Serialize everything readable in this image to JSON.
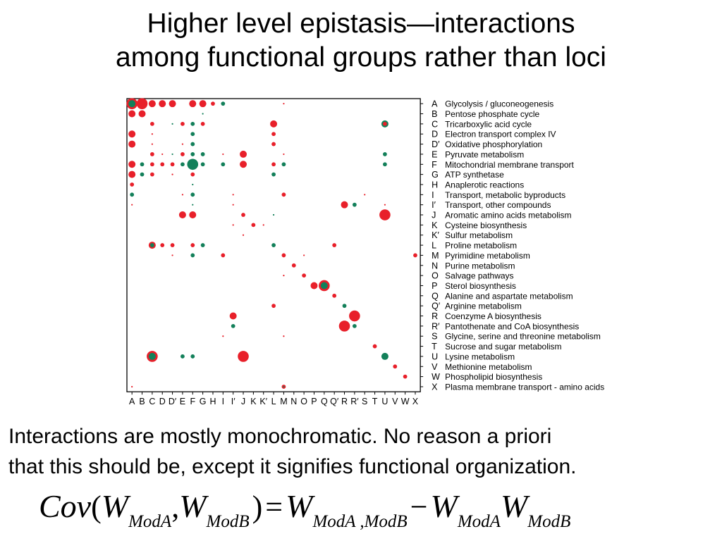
{
  "title": {
    "line1": "Higher level epistasis—interactions",
    "line2": "among functional groups rather than loci"
  },
  "matrix": {
    "colors": {
      "red": "#e8202a",
      "green": "#13805a",
      "grid": "#000000"
    },
    "x_labels": [
      "A",
      "B",
      "C",
      "D",
      "D′",
      "E",
      "F",
      "G",
      "H",
      "I",
      "I′",
      "J",
      "K",
      "K′",
      "L",
      "M",
      "N",
      "O",
      "P",
      "Q",
      "Q′",
      "R",
      "R′",
      "S",
      "T",
      "U",
      "V",
      "W",
      "X"
    ],
    "rows": [
      {
        "code": "A",
        "name": "Glycolysis / gluconeogenesis"
      },
      {
        "code": "B",
        "name": "Pentose phosphate cycle"
      },
      {
        "code": "C",
        "name": "Tricarboxylic acid cycle"
      },
      {
        "code": "D",
        "name": "Electron transport complex IV"
      },
      {
        "code": "D′",
        "name": "Oxidative phosphorylation"
      },
      {
        "code": "E",
        "name": "Pyruvate metabolism"
      },
      {
        "code": "F",
        "name": "Mitochondrial membrane transport"
      },
      {
        "code": "G",
        "name": "ATP synthetase"
      },
      {
        "code": "H",
        "name": "Anaplerotic reactions"
      },
      {
        "code": "I",
        "name": "Transport, metabolic byproducts"
      },
      {
        "code": "I′",
        "name": "Transport, other compounds"
      },
      {
        "code": "J",
        "name": "Aromatic amino acids metabolism"
      },
      {
        "code": "K",
        "name": "Cysteine biosynthesis"
      },
      {
        "code": "K′",
        "name": "Sulfur metabolism"
      },
      {
        "code": "L",
        "name": "Proline metabolism"
      },
      {
        "code": "M",
        "name": "Pyrimidine  metabolism"
      },
      {
        "code": "N",
        "name": "Purine metabolism"
      },
      {
        "code": "O",
        "name": "Salvage pathways"
      },
      {
        "code": "P",
        "name": "Sterol biosynthesis"
      },
      {
        "code": "Q",
        "name": "Alanine and aspartate metabolism"
      },
      {
        "code": "Q′",
        "name": "Arginine metabolism"
      },
      {
        "code": "R",
        "name": "Coenzyme A biosynthesis"
      },
      {
        "code": "R′",
        "name": "Pantothenate and CoA biosynthesis"
      },
      {
        "code": "S",
        "name": "Glycine, serine and threonine metabolism"
      },
      {
        "code": "T",
        "name": "Sucrose and sugar metabolism"
      },
      {
        "code": "U",
        "name": "Lysine metabolism"
      },
      {
        "code": "V",
        "name": "Methionine metabolism"
      },
      {
        "code": "W",
        "name": "Phospholipid biosynthesis"
      },
      {
        "code": "X",
        "name": "Plasma membrane transport - amino acids"
      }
    ],
    "dots": [
      [
        0,
        0,
        "r",
        3
      ],
      [
        0,
        0,
        "g",
        2
      ],
      [
        1,
        0,
        "r",
        3
      ],
      [
        2,
        0,
        "r",
        2
      ],
      [
        3,
        0,
        "r",
        2
      ],
      [
        4,
        0,
        "r",
        2
      ],
      [
        6,
        0,
        "r",
        2
      ],
      [
        7,
        0,
        "r",
        2
      ],
      [
        8,
        0,
        "r",
        1
      ],
      [
        9,
        0,
        "g",
        1
      ],
      [
        15,
        0,
        "r",
        0
      ],
      [
        0,
        1,
        "r",
        2
      ],
      [
        1,
        1,
        "r",
        2
      ],
      [
        7,
        1,
        "g",
        0
      ],
      [
        2,
        2,
        "r",
        1
      ],
      [
        4,
        2,
        "g",
        0
      ],
      [
        5,
        2,
        "r",
        1
      ],
      [
        6,
        2,
        "g",
        1
      ],
      [
        7,
        2,
        "r",
        1
      ],
      [
        14,
        2,
        "r",
        2
      ],
      [
        25,
        2,
        "g",
        2
      ],
      [
        25,
        2,
        "r",
        1
      ],
      [
        0,
        3,
        "r",
        2
      ],
      [
        2,
        3,
        "r",
        0
      ],
      [
        6,
        3,
        "g",
        1
      ],
      [
        14,
        3,
        "r",
        1
      ],
      [
        0,
        4,
        "r",
        2
      ],
      [
        2,
        4,
        "r",
        0
      ],
      [
        5,
        4,
        "r",
        0
      ],
      [
        6,
        4,
        "g",
        1
      ],
      [
        14,
        4,
        "r",
        1
      ],
      [
        2,
        5,
        "r",
        1
      ],
      [
        3,
        5,
        "r",
        0
      ],
      [
        4,
        5,
        "g",
        0
      ],
      [
        5,
        5,
        "r",
        1
      ],
      [
        6,
        5,
        "g",
        1
      ],
      [
        7,
        5,
        "g",
        1
      ],
      [
        9,
        5,
        "r",
        0
      ],
      [
        11,
        5,
        "r",
        2
      ],
      [
        15,
        5,
        "r",
        0
      ],
      [
        25,
        5,
        "g",
        1
      ],
      [
        0,
        6,
        "r",
        2
      ],
      [
        1,
        6,
        "g",
        1
      ],
      [
        2,
        6,
        "r",
        1
      ],
      [
        3,
        6,
        "r",
        1
      ],
      [
        4,
        6,
        "r",
        1
      ],
      [
        5,
        6,
        "g",
        1
      ],
      [
        6,
        6,
        "g",
        3
      ],
      [
        7,
        6,
        "g",
        1
      ],
      [
        9,
        6,
        "g",
        1
      ],
      [
        11,
        6,
        "r",
        2
      ],
      [
        14,
        6,
        "r",
        1
      ],
      [
        15,
        6,
        "g",
        1
      ],
      [
        25,
        6,
        "g",
        1
      ],
      [
        0,
        7,
        "r",
        2
      ],
      [
        1,
        7,
        "g",
        1
      ],
      [
        2,
        7,
        "r",
        1
      ],
      [
        4,
        7,
        "r",
        0
      ],
      [
        6,
        7,
        "r",
        1
      ],
      [
        14,
        7,
        "g",
        1
      ],
      [
        0,
        8,
        "r",
        1
      ],
      [
        6,
        8,
        "g",
        0
      ],
      [
        0,
        9,
        "g",
        1
      ],
      [
        5,
        9,
        "r",
        0
      ],
      [
        6,
        9,
        "g",
        1
      ],
      [
        10,
        9,
        "r",
        0
      ],
      [
        15,
        9,
        "r",
        1
      ],
      [
        23,
        9,
        "r",
        0
      ],
      [
        0,
        10,
        "r",
        0
      ],
      [
        6,
        10,
        "g",
        0
      ],
      [
        10,
        10,
        "r",
        0
      ],
      [
        21,
        10,
        "r",
        2
      ],
      [
        22,
        10,
        "g",
        1
      ],
      [
        25,
        10,
        "r",
        0
      ],
      [
        5,
        11,
        "r",
        2
      ],
      [
        6,
        11,
        "r",
        2
      ],
      [
        11,
        11,
        "r",
        1
      ],
      [
        14,
        11,
        "g",
        0
      ],
      [
        25,
        11,
        "r",
        3
      ],
      [
        10,
        12,
        "r",
        0
      ],
      [
        12,
        12,
        "r",
        1
      ],
      [
        13,
        12,
        "r",
        0
      ],
      [
        11,
        13,
        "r",
        0
      ],
      [
        2,
        14,
        "r",
        2
      ],
      [
        2,
        14,
        "g",
        1
      ],
      [
        3,
        14,
        "r",
        1
      ],
      [
        4,
        14,
        "r",
        1
      ],
      [
        6,
        14,
        "r",
        1
      ],
      [
        7,
        14,
        "g",
        1
      ],
      [
        14,
        14,
        "g",
        1
      ],
      [
        20,
        14,
        "r",
        1
      ],
      [
        4,
        15,
        "r",
        0
      ],
      [
        6,
        15,
        "g",
        1
      ],
      [
        9,
        15,
        "r",
        1
      ],
      [
        15,
        15,
        "r",
        1
      ],
      [
        17,
        15,
        "r",
        0
      ],
      [
        28,
        15,
        "r",
        1
      ],
      [
        16,
        16,
        "r",
        1
      ],
      [
        15,
        17,
        "r",
        0
      ],
      [
        17,
        17,
        "r",
        1
      ],
      [
        18,
        18,
        "r",
        2
      ],
      [
        19,
        18,
        "r",
        3
      ],
      [
        19,
        18,
        "g",
        2
      ],
      [
        20,
        19,
        "r",
        1
      ],
      [
        14,
        20,
        "r",
        1
      ],
      [
        21,
        20,
        "g",
        1
      ],
      [
        10,
        21,
        "r",
        2
      ],
      [
        22,
        21,
        "r",
        3
      ],
      [
        10,
        22,
        "g",
        1
      ],
      [
        21,
        22,
        "r",
        3
      ],
      [
        22,
        22,
        "g",
        1
      ],
      [
        9,
        23,
        "r",
        0
      ],
      [
        15,
        23,
        "r",
        0
      ],
      [
        24,
        24,
        "r",
        1
      ],
      [
        2,
        25,
        "r",
        3
      ],
      [
        2,
        25,
        "g",
        2
      ],
      [
        5,
        25,
        "g",
        1
      ],
      [
        6,
        25,
        "g",
        1
      ],
      [
        11,
        25,
        "r",
        3
      ],
      [
        25,
        25,
        "g",
        2
      ],
      [
        26,
        26,
        "r",
        1
      ],
      [
        27,
        27,
        "r",
        1
      ],
      [
        15,
        28,
        "r",
        1
      ],
      [
        15,
        28,
        "g",
        0
      ],
      [
        0,
        28,
        "r",
        0
      ]
    ]
  },
  "body": {
    "line1": "Interactions are mostly monochromatic. No reason a priori",
    "line2": "that this should be, except it signifies functional organization."
  },
  "formula": {
    "cov": "Cov",
    "lparen": "(",
    "w": "W",
    "sub_a": "ModA",
    "comma": ",",
    "sub_b": "ModB",
    "rparen": ")",
    "eq": "=",
    "sub_ab": "ModA ,ModB",
    "minus": "−"
  }
}
